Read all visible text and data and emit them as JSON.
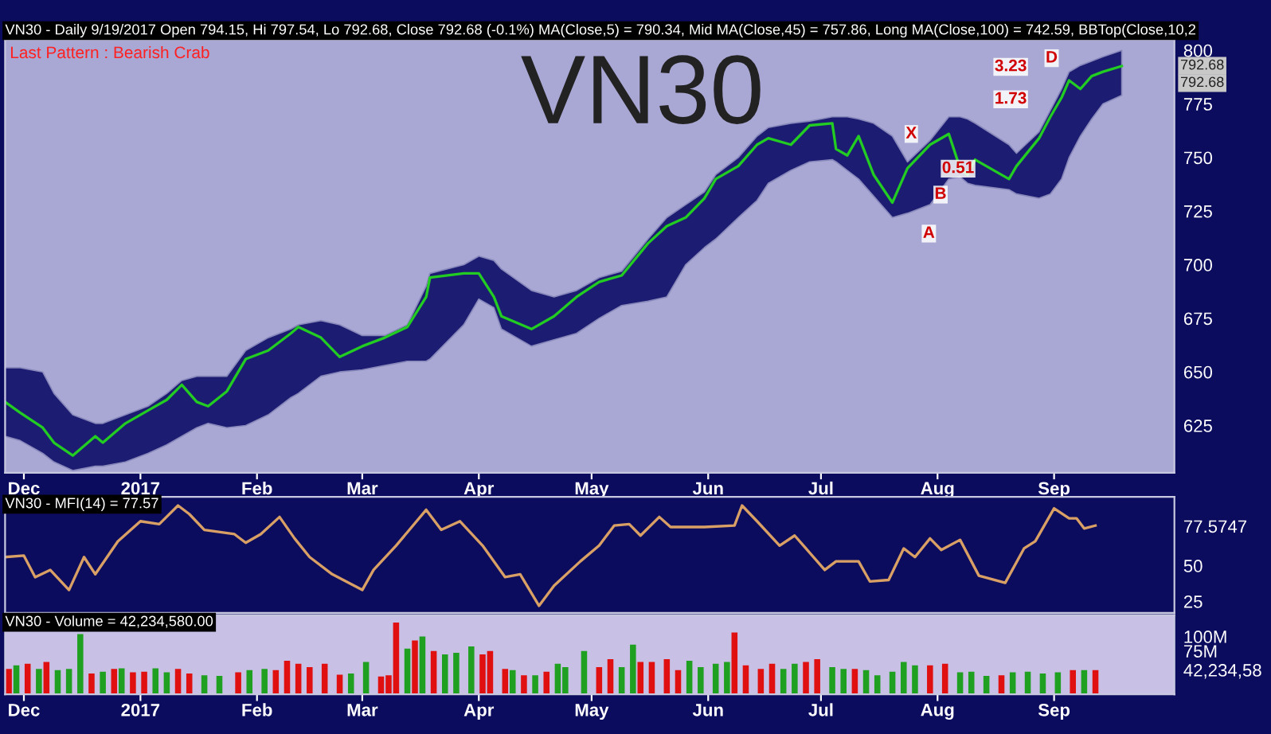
{
  "chart_data": [
    {
      "type": "line",
      "title": "VN30 - Daily 9/19/2017 Open 794.15, Hi 797.54, Lo 792.68, Close 792.68 (-0.1%) MA(Close,5) = 790.34, Mid MA(Close,45) = 757.86, Long MA(Close,100) = 742.59, BBTop(Close,10,2",
      "x": [
        "2016-11-26",
        "2016-11-30",
        "2016-12-06",
        "2016-12-09",
        "2016-12-14",
        "2016-12-20",
        "2016-12-22",
        "2016-12-28",
        "2017-01-03",
        "2017-01-08",
        "2017-01-12",
        "2017-01-16",
        "2017-01-19",
        "2017-01-24",
        "2017-01-29",
        "2017-02-04",
        "2017-02-10",
        "2017-02-12",
        "2017-02-18",
        "2017-02-23",
        "2017-03-01",
        "2017-03-07",
        "2017-03-13",
        "2017-03-18",
        "2017-03-19",
        "2017-03-28",
        "2017-04-01",
        "2017-04-05",
        "2017-04-07",
        "2017-04-15",
        "2017-04-21",
        "2017-04-27",
        "2017-05-03",
        "2017-05-09",
        "2017-05-16",
        "2017-05-21",
        "2017-05-26",
        "2017-05-31",
        "2017-06-03",
        "2017-06-09",
        "2017-06-14",
        "2017-06-17",
        "2017-06-23",
        "2017-06-28",
        "2017-07-04",
        "2017-07-05",
        "2017-07-08",
        "2017-07-11",
        "2017-07-15",
        "2017-07-20",
        "2017-07-24",
        "2017-07-30",
        "2017-08-04",
        "2017-08-07",
        "2017-08-09",
        "2017-08-11",
        "2017-08-20",
        "2017-08-22",
        "2017-08-28",
        "2017-08-31",
        "2017-09-03",
        "2017-09-05",
        "2017-09-08",
        "2017-09-11",
        "2017-09-14",
        "2017-09-19"
      ],
      "series": [
        {
          "color": "#22cc22",
          "values": [
            636,
            631,
            624,
            617,
            611,
            620,
            617,
            626,
            632,
            637,
            644,
            636,
            634,
            641,
            656,
            660,
            668,
            671,
            666,
            657,
            662,
            666,
            671,
            685,
            694,
            696,
            696,
            685,
            676,
            670,
            676,
            685,
            692,
            695,
            710,
            718,
            722,
            731,
            740,
            746,
            756,
            759,
            756,
            765,
            766,
            754,
            751,
            760,
            742,
            729,
            745,
            756,
            761,
            745,
            742,
            749,
            740,
            746,
            759,
            769,
            778,
            786,
            782,
            788,
            790,
            792.68
          ],
          "upper": [
            652,
            652,
            650,
            640,
            630,
            626,
            626,
            630,
            634,
            640,
            646,
            648,
            648,
            648,
            660,
            666,
            670,
            672,
            674,
            672,
            667,
            667,
            672,
            690,
            696,
            700,
            704,
            702,
            698,
            688,
            685,
            688,
            694,
            697,
            712,
            722,
            728,
            734,
            742,
            750,
            760,
            764,
            766,
            767,
            769,
            769,
            769,
            768,
            766,
            760,
            748,
            758,
            769,
            769,
            768,
            766,
            756,
            752,
            762,
            772,
            782,
            790,
            793,
            795,
            797,
            800
          ],
          "lower": [
            620,
            618,
            612,
            608,
            604,
            606,
            606,
            608,
            612,
            616,
            620,
            624,
            626,
            624,
            625,
            630,
            638,
            640,
            648,
            650,
            651,
            653,
            655,
            655,
            656,
            672,
            684,
            680,
            670,
            662,
            665,
            668,
            675,
            681,
            683,
            685,
            700,
            708,
            712,
            722,
            730,
            738,
            744,
            748,
            749,
            748,
            744,
            740,
            732,
            722,
            724,
            728,
            740,
            741,
            738,
            737,
            735,
            733,
            731,
            733,
            740,
            750,
            760,
            768,
            775,
            779
          ]
        }
      ],
      "xlim": [
        "2016-11-26",
        "2017-10-03"
      ],
      "xticks": [
        {
          "value": "2016-12-01",
          "label": "Dec"
        },
        {
          "value": "2017-01-01",
          "label": "2017"
        },
        {
          "value": "2017-02-01",
          "label": "Feb"
        },
        {
          "value": "2017-03-01",
          "label": "Mar"
        },
        {
          "value": "2017-04-01",
          "label": "Apr"
        },
        {
          "value": "2017-05-01",
          "label": "May"
        },
        {
          "value": "2017-06-01",
          "label": "Jun"
        },
        {
          "value": "2017-07-01",
          "label": "Jul"
        },
        {
          "value": "2017-08-01",
          "label": "Aug"
        },
        {
          "value": "2017-09-01",
          "label": "Sep"
        }
      ],
      "ylim": [
        603,
        805
      ],
      "yticks": [
        625,
        650,
        675,
        700,
        725,
        750,
        775,
        800
      ],
      "annotations": [
        "Last Pattern : Bearish Crab",
        "VN30",
        "792.68",
        "792.68",
        "X",
        "A",
        "0.51",
        "B",
        "1.73",
        "3.23",
        "D"
      ],
      "grid": false,
      "legend": false
    },
    {
      "type": "line",
      "title": "VN30 - MFI(14) = 77.57",
      "x": [
        "2016-11-26",
        "2016-12-01",
        "2016-12-04",
        "2016-12-08",
        "2016-12-13",
        "2016-12-17",
        "2016-12-20",
        "2016-12-26",
        "2017-01-01",
        "2017-01-06",
        "2017-01-11",
        "2017-01-14",
        "2017-01-18",
        "2017-01-26",
        "2017-01-29",
        "2017-02-02",
        "2017-02-07",
        "2017-02-11",
        "2017-02-15",
        "2017-02-21",
        "2017-03-01",
        "2017-03-04",
        "2017-03-10",
        "2017-03-18",
        "2017-03-22",
        "2017-03-27",
        "2017-04-02",
        "2017-04-08",
        "2017-04-12",
        "2017-04-17",
        "2017-04-21",
        "2017-04-28",
        "2017-05-03",
        "2017-05-07",
        "2017-05-11",
        "2017-05-14",
        "2017-05-19",
        "2017-05-22",
        "2017-05-31",
        "2017-06-08",
        "2017-06-10",
        "2017-06-14",
        "2017-06-20",
        "2017-06-24",
        "2017-06-27",
        "2017-07-02",
        "2017-07-05",
        "2017-07-11",
        "2017-07-14",
        "2017-07-19",
        "2017-07-23",
        "2017-07-26",
        "2017-07-30",
        "2017-08-02",
        "2017-08-07",
        "2017-08-12",
        "2017-08-19",
        "2017-08-24",
        "2017-08-27",
        "2017-09-01",
        "2017-09-05",
        "2017-09-07",
        "2017-09-09",
        "2017-09-12"
      ],
      "series": [
        {
          "color": "#d9a066",
          "values": [
            56,
            57,
            42,
            47,
            33,
            56,
            44,
            67,
            81,
            79,
            92,
            86,
            75,
            72,
            66,
            72,
            84,
            69,
            56,
            44,
            33,
            47,
            64,
            89,
            75,
            81,
            64,
            42,
            44,
            22,
            36,
            53,
            64,
            78,
            79,
            71,
            84,
            77,
            77,
            78,
            92,
            81,
            64,
            71,
            62,
            47,
            53,
            53,
            39,
            40,
            62,
            56,
            69,
            61,
            68,
            43,
            38,
            62,
            67,
            90,
            83,
            83,
            76,
            78
          ]
        }
      ],
      "xlim": [
        "2016-11-26",
        "2017-10-03"
      ],
      "ylim": [
        17,
        98
      ],
      "yticks": [
        25,
        50,
        {
          "value": 77.5747,
          "label": "77.5747"
        }
      ],
      "tick_labels": "y",
      "grid": false,
      "legend": false
    },
    {
      "type": "bar",
      "title": "VN30 - Volume = 42,234,580.00",
      "x": [
        "2016-11-27",
        "2016-11-29",
        "2016-12-02",
        "2016-12-05",
        "2016-12-07",
        "2016-12-10",
        "2016-12-13",
        "2016-12-16",
        "2016-12-19",
        "2016-12-22",
        "2016-12-25",
        "2016-12-27",
        "2016-12-30",
        "2017-01-02",
        "2017-01-05",
        "2017-01-08",
        "2017-01-11",
        "2017-01-14",
        "2017-01-18",
        "2017-01-22",
        "2017-01-27",
        "2017-01-30",
        "2017-02-03",
        "2017-02-06",
        "2017-02-09",
        "2017-02-12",
        "2017-02-15",
        "2017-02-19",
        "2017-02-23",
        "2017-02-26",
        "2017-03-02",
        "2017-03-06",
        "2017-03-08",
        "2017-03-10",
        "2017-03-13",
        "2017-03-15",
        "2017-03-17",
        "2017-03-20",
        "2017-03-23",
        "2017-03-26",
        "2017-03-30",
        "2017-04-02",
        "2017-04-04",
        "2017-04-08",
        "2017-04-10",
        "2017-04-13",
        "2017-04-16",
        "2017-04-19",
        "2017-04-22",
        "2017-04-24",
        "2017-04-29",
        "2017-05-03",
        "2017-05-06",
        "2017-05-09",
        "2017-05-12",
        "2017-05-14",
        "2017-05-17",
        "2017-05-21",
        "2017-05-24",
        "2017-05-27",
        "2017-05-30",
        "2017-06-03",
        "2017-06-06",
        "2017-06-08",
        "2017-06-11",
        "2017-06-15",
        "2017-06-18",
        "2017-06-21",
        "2017-06-24",
        "2017-06-27",
        "2017-06-30",
        "2017-07-04",
        "2017-07-07",
        "2017-07-10",
        "2017-07-13",
        "2017-07-16",
        "2017-07-20",
        "2017-07-23",
        "2017-07-26",
        "2017-07-30",
        "2017-08-03",
        "2017-08-07",
        "2017-08-10",
        "2017-08-14",
        "2017-08-18",
        "2017-08-21",
        "2017-08-25",
        "2017-08-29",
        "2017-09-02",
        "2017-09-06",
        "2017-09-09",
        "2017-09-12"
      ],
      "values": [
        44,
        50,
        53,
        44,
        56,
        42,
        44,
        104,
        36,
        39,
        44,
        45,
        38,
        39,
        45,
        38,
        44,
        36,
        33,
        32,
        38,
        42,
        44,
        42,
        58,
        53,
        47,
        53,
        34,
        36,
        56,
        31,
        33,
        124,
        79,
        93,
        100,
        75,
        69,
        72,
        83,
        69,
        75,
        44,
        42,
        33,
        33,
        39,
        53,
        47,
        75,
        47,
        61,
        47,
        86,
        56,
        56,
        61,
        42,
        58,
        47,
        53,
        56,
        107,
        50,
        44,
        53,
        44,
        53,
        56,
        61,
        47,
        44,
        44,
        42,
        33,
        39,
        56,
        50,
        50,
        53,
        38,
        39,
        32,
        33,
        38,
        39,
        36,
        38,
        42,
        42,
        42
      ],
      "colors": [
        "#e01010",
        "#20a020",
        "#e01010",
        "#20a020",
        "#e01010",
        "#20a020",
        "#20a020",
        "#20a020",
        "#e01010",
        "#20a020",
        "#e01010",
        "#20a020",
        "#e01010",
        "#e01010",
        "#20a020",
        "#20a020",
        "#e01010",
        "#e01010",
        "#20a020",
        "#20a020",
        "#e01010",
        "#20a020",
        "#20a020",
        "#e01010",
        "#e01010",
        "#e01010",
        "#e01010",
        "#e01010",
        "#e01010",
        "#20a020",
        "#20a020",
        "#e01010",
        "#e01010",
        "#e01010",
        "#20a020",
        "#e01010",
        "#20a020",
        "#e01010",
        "#20a020",
        "#20a020",
        "#20a020",
        "#e01010",
        "#e01010",
        "#e01010",
        "#20a020",
        "#e01010",
        "#20a020",
        "#e01010",
        "#20a020",
        "#20a020",
        "#20a020",
        "#e01010",
        "#e01010",
        "#20a020",
        "#20a020",
        "#e01010",
        "#e01010",
        "#e01010",
        "#e01010",
        "#20a020",
        "#20a020",
        "#20a020",
        "#20a020",
        "#e01010",
        "#e01010",
        "#e01010",
        "#e01010",
        "#20a020",
        "#20a020",
        "#e01010",
        "#e01010",
        "#20a020",
        "#20a020",
        "#e01010",
        "#20a020",
        "#20a020",
        "#20a020",
        "#20a020",
        "#20a020",
        "#e01010",
        "#e01010",
        "#20a020",
        "#20a020",
        "#20a020",
        "#e01010",
        "#20a020",
        "#20a020",
        "#20a020",
        "#20a020",
        "#e01010",
        "#20a020",
        "#e01010"
      ],
      "xlim": [
        "2016-11-26",
        "2017-10-03"
      ],
      "xticks": [
        {
          "value": "2016-12-01",
          "label": "Dec"
        },
        {
          "value": "2017-01-01",
          "label": "2017"
        },
        {
          "value": "2017-02-01",
          "label": "Feb"
        },
        {
          "value": "2017-03-01",
          "label": "Mar"
        },
        {
          "value": "2017-04-01",
          "label": "Apr"
        },
        {
          "value": "2017-05-01",
          "label": "May"
        },
        {
          "value": "2017-06-01",
          "label": "Jun"
        },
        {
          "value": "2017-07-01",
          "label": "Jul"
        },
        {
          "value": "2017-08-01",
          "label": "Aug"
        },
        {
          "value": "2017-09-01",
          "label": "Sep"
        }
      ],
      "ylim": [
        0,
        137
      ],
      "yticks": [
        {
          "value": 42.23458,
          "label": "42,234,58"
        },
        {
          "value": 75,
          "label": "75M"
        },
        {
          "value": 100,
          "label": "100M"
        }
      ],
      "grid": false,
      "legend": false
    }
  ]
}
